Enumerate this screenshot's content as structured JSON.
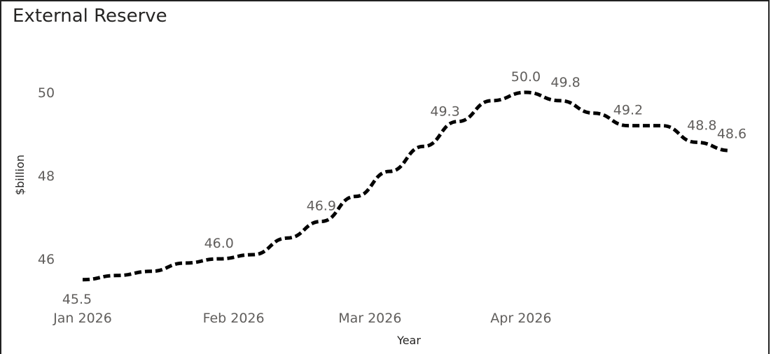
{
  "chart_data": {
    "type": "line",
    "title": "External Reserve",
    "xlabel": "Year",
    "ylabel": "$billion",
    "x_ticks": [
      "Jan 2026",
      "Feb 2026",
      "Mar 2026",
      "Apr 2026"
    ],
    "y_ticks": [
      46,
      48,
      50
    ],
    "ylim": [
      45.0,
      50.7
    ],
    "grid": false,
    "series": [
      {
        "line_style": "dashed",
        "color": "#000000",
        "points": [
          {
            "x": "2026-01-01",
            "y": 45.5,
            "label": "45.5"
          },
          {
            "x": "2026-01-08",
            "y": 45.6
          },
          {
            "x": "2026-01-15",
            "y": 45.7
          },
          {
            "x": "2026-01-22",
            "y": 45.9
          },
          {
            "x": "2026-01-29",
            "y": 46.0,
            "label": "46.0"
          },
          {
            "x": "2026-02-05",
            "y": 46.1
          },
          {
            "x": "2026-02-12",
            "y": 46.5
          },
          {
            "x": "2026-02-19",
            "y": 46.9,
            "label": "46.9"
          },
          {
            "x": "2026-02-26",
            "y": 47.5
          },
          {
            "x": "2026-03-05",
            "y": 48.1
          },
          {
            "x": "2026-03-12",
            "y": 48.7
          },
          {
            "x": "2026-03-19",
            "y": 49.3,
            "label": "49.3"
          },
          {
            "x": "2026-03-26",
            "y": 49.8
          },
          {
            "x": "2026-04-02",
            "y": 50.0,
            "label": "50.0"
          },
          {
            "x": "2026-04-09",
            "y": 49.8,
            "label": "49.8"
          },
          {
            "x": "2026-04-16",
            "y": 49.5
          },
          {
            "x": "2026-04-23",
            "y": 49.2,
            "label": "49.2"
          },
          {
            "x": "2026-04-30",
            "y": 49.2
          },
          {
            "x": "2026-05-07",
            "y": 48.8,
            "label": "48.8"
          },
          {
            "x": "2026-05-14",
            "y": 48.6,
            "label": "48.6"
          }
        ]
      }
    ]
  }
}
